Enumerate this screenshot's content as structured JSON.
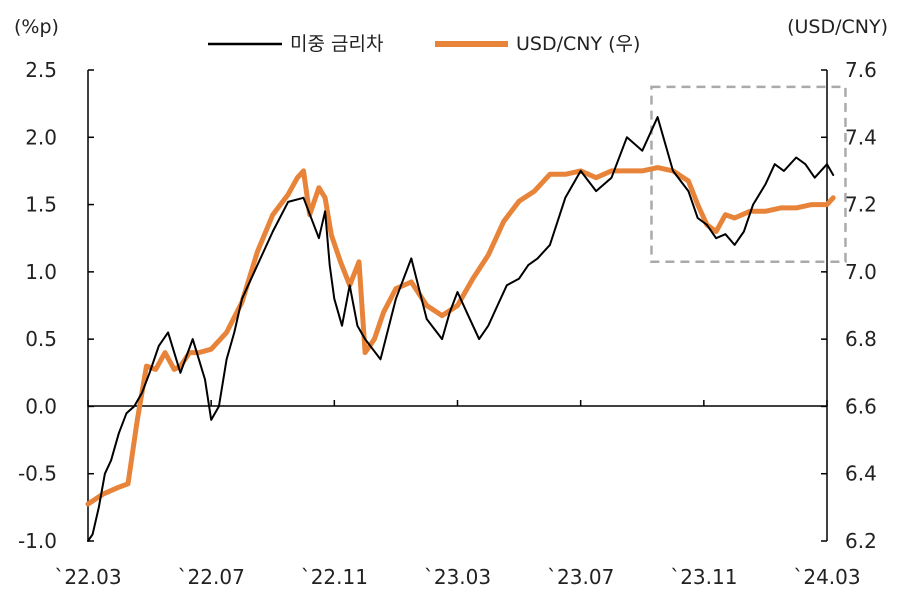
{
  "chart_data": {
    "type": "line",
    "title": "",
    "left_unit": "(%p)",
    "right_unit": "(USD/CNY)",
    "x_categories": [
      "`22.03",
      "`22.07",
      "`22.11",
      "`23.03",
      "`23.07",
      "`23.11",
      "`24.03"
    ],
    "y_left": {
      "ticks": [
        "2.5",
        "2.0",
        "1.5",
        "1.0",
        "0.5",
        "0.0",
        "-0.5",
        "-1.0"
      ],
      "min": -1.0,
      "max": 2.5
    },
    "y_right": {
      "ticks": [
        "7.6",
        "7.4",
        "7.2",
        "7.0",
        "6.8",
        "6.6",
        "6.4",
        "6.2"
      ],
      "min": 6.2,
      "max": 7.6
    },
    "legend_position": "top-center",
    "highlight_box": {
      "x_range": [
        "2023-09",
        "2024-03"
      ],
      "y_right_range": [
        7.03,
        7.55
      ]
    },
    "series": [
      {
        "name": "미중 금리차",
        "axis": "left",
        "color": "#000000",
        "x": [
          0,
          0.15,
          0.35,
          0.55,
          0.75,
          1.0,
          1.25,
          1.5,
          1.75,
          2.0,
          2.3,
          2.6,
          3.0,
          3.4,
          3.8,
          4.0,
          4.25,
          4.5,
          4.75,
          5.0,
          5.5,
          6.0,
          6.5,
          7.0,
          7.5,
          7.7,
          7.85,
          8.0,
          8.25,
          8.5,
          8.75,
          9.0,
          9.5,
          10.0,
          10.5,
          11.0,
          11.5,
          11.75,
          12.0,
          12.3,
          12.7,
          13.0,
          13.3,
          13.6,
          14.0,
          14.3,
          14.6,
          15.0,
          15.5,
          16.0,
          16.5,
          17.0,
          17.5,
          18.0,
          18.5,
          19.0,
          19.5,
          19.8,
          20.1,
          20.4,
          20.7,
          21.0,
          21.3,
          21.6,
          22.0,
          22.3,
          22.6,
          23.0,
          23.3,
          23.6,
          24.0,
          24.2
        ],
        "y": [
          -1.0,
          -0.95,
          -0.75,
          -0.5,
          -0.4,
          -0.2,
          -0.05,
          0.0,
          0.1,
          0.25,
          0.45,
          0.55,
          0.25,
          0.5,
          0.2,
          -0.1,
          0.0,
          0.35,
          0.55,
          0.8,
          1.05,
          1.3,
          1.52,
          1.55,
          1.25,
          1.45,
          1.05,
          0.8,
          0.6,
          0.9,
          0.6,
          0.5,
          0.35,
          0.8,
          1.1,
          0.65,
          0.5,
          0.7,
          0.85,
          0.7,
          0.5,
          0.6,
          0.75,
          0.9,
          0.95,
          1.05,
          1.1,
          1.2,
          1.55,
          1.75,
          1.6,
          1.7,
          2.0,
          1.9,
          2.15,
          1.75,
          1.6,
          1.4,
          1.35,
          1.25,
          1.28,
          1.2,
          1.3,
          1.5,
          1.65,
          1.8,
          1.75,
          1.85,
          1.8,
          1.7,
          1.8,
          1.72
        ]
      },
      {
        "name": "USD/CNY (우)",
        "axis": "right",
        "color": "#E8843A",
        "x": [
          0,
          0.5,
          1.0,
          1.3,
          1.6,
          1.9,
          2.2,
          2.5,
          2.8,
          3.0,
          3.3,
          3.6,
          4.0,
          4.5,
          5.0,
          5.5,
          6.0,
          6.5,
          6.8,
          7.0,
          7.2,
          7.5,
          7.7,
          7.9,
          8.2,
          8.5,
          8.8,
          9.0,
          9.3,
          9.6,
          10.0,
          10.5,
          11.0,
          11.5,
          12.0,
          12.5,
          13.0,
          13.5,
          14.0,
          14.5,
          15.0,
          15.5,
          16.0,
          16.5,
          17.0,
          17.5,
          18.0,
          18.5,
          19.0,
          19.5,
          19.8,
          20.1,
          20.4,
          20.7,
          21.0,
          21.5,
          22.0,
          22.5,
          23.0,
          23.5,
          24.0,
          24.2
        ],
        "y": [
          6.31,
          6.34,
          6.36,
          6.37,
          6.56,
          6.72,
          6.71,
          6.76,
          6.71,
          6.72,
          6.76,
          6.76,
          6.77,
          6.82,
          6.91,
          7.06,
          7.17,
          7.23,
          7.28,
          7.3,
          7.17,
          7.25,
          7.22,
          7.11,
          7.03,
          6.96,
          7.03,
          6.76,
          6.8,
          6.88,
          6.95,
          6.97,
          6.9,
          6.87,
          6.9,
          6.98,
          7.05,
          7.15,
          7.21,
          7.24,
          7.29,
          7.29,
          7.3,
          7.28,
          7.3,
          7.3,
          7.3,
          7.31,
          7.3,
          7.27,
          7.2,
          7.14,
          7.12,
          7.17,
          7.16,
          7.18,
          7.18,
          7.19,
          7.19,
          7.2,
          7.2,
          7.22
        ]
      }
    ]
  }
}
